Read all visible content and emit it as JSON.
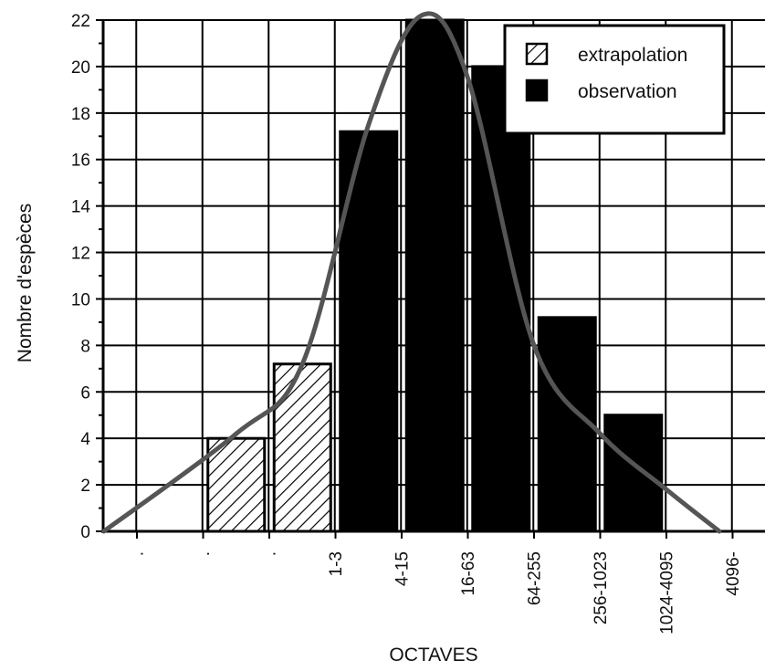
{
  "chart_data": {
    "type": "bar",
    "xlabel": "OCTAVES",
    "ylabel": "Nombre d'espèces",
    "ylim": [
      0,
      22
    ],
    "yticks": [
      0,
      2,
      4,
      6,
      8,
      10,
      12,
      14,
      16,
      18,
      20,
      22
    ],
    "categories": [
      ".",
      ".",
      ".",
      "1-3",
      "4-15",
      "16-63",
      "64-255",
      "256-1023",
      "1024-4095",
      "4096-"
    ],
    "series": [
      {
        "name": "extrapolation",
        "values": [
          0,
          4,
          7.2,
          0,
          0,
          0,
          0,
          0,
          0,
          0
        ],
        "pattern": "hatched"
      },
      {
        "name": "observation",
        "values": [
          0,
          0,
          0,
          17.2,
          22,
          20,
          9.2,
          5,
          0,
          0
        ],
        "color": "#000000"
      }
    ],
    "curve": {
      "x": [
        -0.5,
        1.5,
        2.5,
        3.5,
        4.3,
        5,
        6,
        7,
        8,
        8.8
      ],
      "y": [
        0,
        4.2,
        7.2,
        17.5,
        22.2,
        19.5,
        8,
        4.2,
        1.8,
        0
      ],
      "color": "#555555"
    },
    "grid": true,
    "legend": "top-right"
  }
}
